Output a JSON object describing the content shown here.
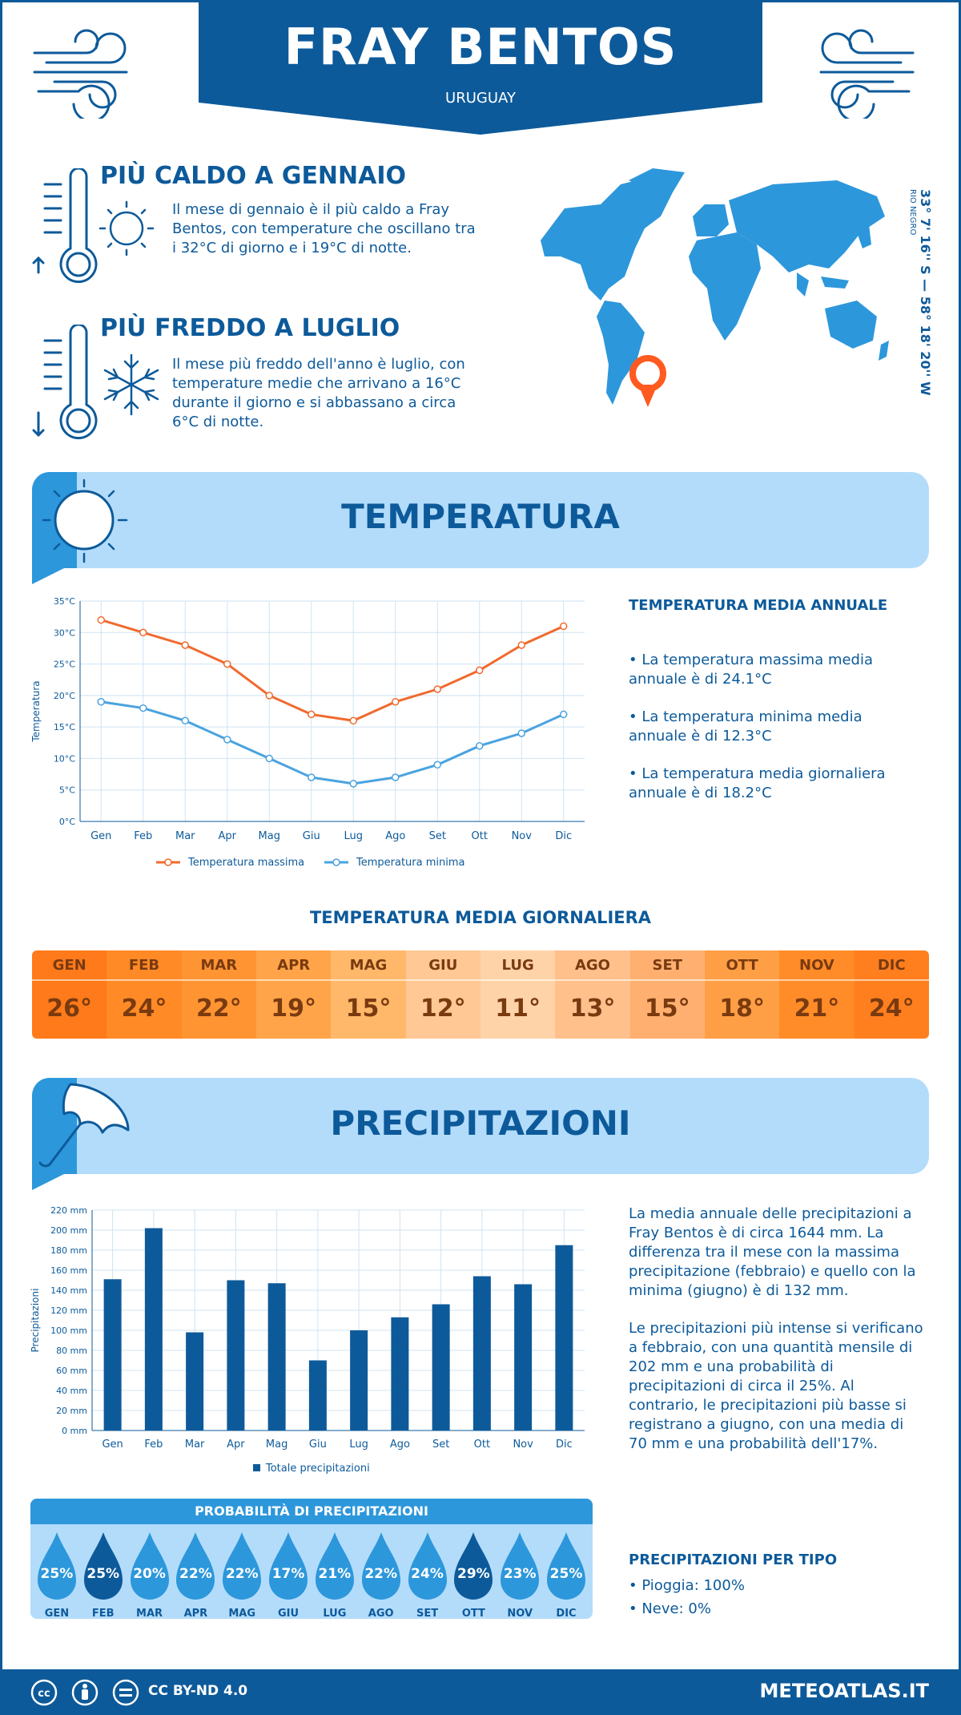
{
  "header": {
    "city": "FRAY BENTOS",
    "country": "URUGUAY"
  },
  "hot": {
    "title": "PIÙ CALDO A GENNAIO",
    "text": "Il mese di gennaio è il più caldo a Fray Bentos, con temperature che oscillano tra i 32°C di giorno e i 19°C di notte."
  },
  "cold": {
    "title": "PIÙ FREDDO A LUGLIO",
    "text": "Il mese più freddo dell'anno è luglio, con temperature medie che arrivano a 16°C durante il giorno e si abbassano a circa 6°C di notte."
  },
  "location": {
    "coords": "33° 7' 16'' S — 58° 18' 20'' W",
    "region": "RIO NEGRO"
  },
  "temperature": {
    "banner": "TEMPERATURA",
    "annual_title": "TEMPERATURA MEDIA ANNUALE",
    "bullets": [
      "• La temperatura massima media annuale è di 24.1°C",
      "• La temperatura minima media annuale è di 12.3°C",
      "• La temperatura media giornaliera annuale è di 18.2°C"
    ],
    "daily_title": "TEMPERATURA MEDIA GIORNALIERA",
    "months": [
      "GEN",
      "FEB",
      "MAR",
      "APR",
      "MAG",
      "GIU",
      "LUG",
      "AGO",
      "SET",
      "OTT",
      "NOV",
      "DIC"
    ],
    "daily": [
      "26°",
      "24°",
      "22°",
      "19°",
      "15°",
      "12°",
      "11°",
      "13°",
      "15°",
      "18°",
      "21°",
      "24°"
    ],
    "daily_colors": [
      "#ff7a1a",
      "#ff8a26",
      "#ff9433",
      "#ffa448",
      "#ffb86a",
      "#ffc894",
      "#ffd3a8",
      "#ffc08c",
      "#ffb070",
      "#ff9f45",
      "#ff8c28",
      "#ff7f1f"
    ]
  },
  "chart_data": [
    {
      "type": "line",
      "categories": [
        "Gen",
        "Feb",
        "Mar",
        "Apr",
        "Mag",
        "Giu",
        "Lug",
        "Ago",
        "Set",
        "Ott",
        "Nov",
        "Dic"
      ],
      "series": [
        {
          "name": "Temperatura massima",
          "values": [
            32,
            30,
            28,
            25,
            20,
            17,
            16,
            19,
            21,
            24,
            28,
            31
          ],
          "color": "#f06a2e"
        },
        {
          "name": "Temperatura minima",
          "values": [
            19,
            18,
            16,
            13,
            10,
            7,
            6,
            7,
            9,
            12,
            14,
            17
          ],
          "color": "#4aa3df"
        }
      ],
      "ylabel": "Temperatura",
      "ylim": [
        0,
        35
      ],
      "yticks": [
        "0°C",
        "5°C",
        "10°C",
        "15°C",
        "20°C",
        "25°C",
        "30°C",
        "35°C"
      ],
      "grid": true,
      "legend": "bottom"
    },
    {
      "type": "bar",
      "categories": [
        "Gen",
        "Feb",
        "Mar",
        "Apr",
        "Mag",
        "Giu",
        "Lug",
        "Ago",
        "Set",
        "Ott",
        "Nov",
        "Dic"
      ],
      "series": [
        {
          "name": "Totale precipitazioni",
          "values": [
            151,
            202,
            98,
            150,
            147,
            70,
            100,
            113,
            126,
            154,
            146,
            185
          ],
          "color": "#0d5a9a"
        }
      ],
      "ylabel": "Precipitazioni",
      "ylim": [
        0,
        220
      ],
      "yticks": [
        "0 mm",
        "20 mm",
        "40 mm",
        "60 mm",
        "80 mm",
        "100 mm",
        "120 mm",
        "140 mm",
        "160 mm",
        "180 mm",
        "200 mm",
        "220 mm"
      ],
      "grid": true,
      "legend": "bottom"
    }
  ],
  "precipitation": {
    "banner": "PRECIPITAZIONI",
    "para1": "La media annuale delle precipitazioni a Fray Bentos è di circa 1644 mm. La differenza tra il mese con la massima precipitazione (febbraio) e quello con la minima (giugno) è di 132 mm.",
    "para2": "Le precipitazioni più intense si verificano a febbraio, con una quantità mensile di 202 mm e una probabilità di precipitazioni di circa il 25%. Al contrario, le precipitazioni più basse si registrano a giugno, con una media di 70 mm e una probabilità dell'17%.",
    "prob_title": "PROBABILITÀ DI PRECIPITAZIONI",
    "probs": [
      "25%",
      "25%",
      "20%",
      "22%",
      "22%",
      "17%",
      "21%",
      "22%",
      "24%",
      "29%",
      "23%",
      "25%"
    ],
    "prob_dark": [
      false,
      true,
      false,
      false,
      false,
      false,
      false,
      false,
      false,
      true,
      false,
      false
    ],
    "type_title": "PRECIPITAZIONI PER TIPO",
    "types": [
      "• Pioggia: 100%",
      "• Neve: 0%"
    ]
  },
  "footer": {
    "license": "CC BY-ND 4.0",
    "site": "METEOATLAS.IT"
  },
  "colors": {
    "primary": "#0d5a9a",
    "light": "#b3dcfb",
    "accent": "#2d97db",
    "marker": "#ff5a1f"
  }
}
